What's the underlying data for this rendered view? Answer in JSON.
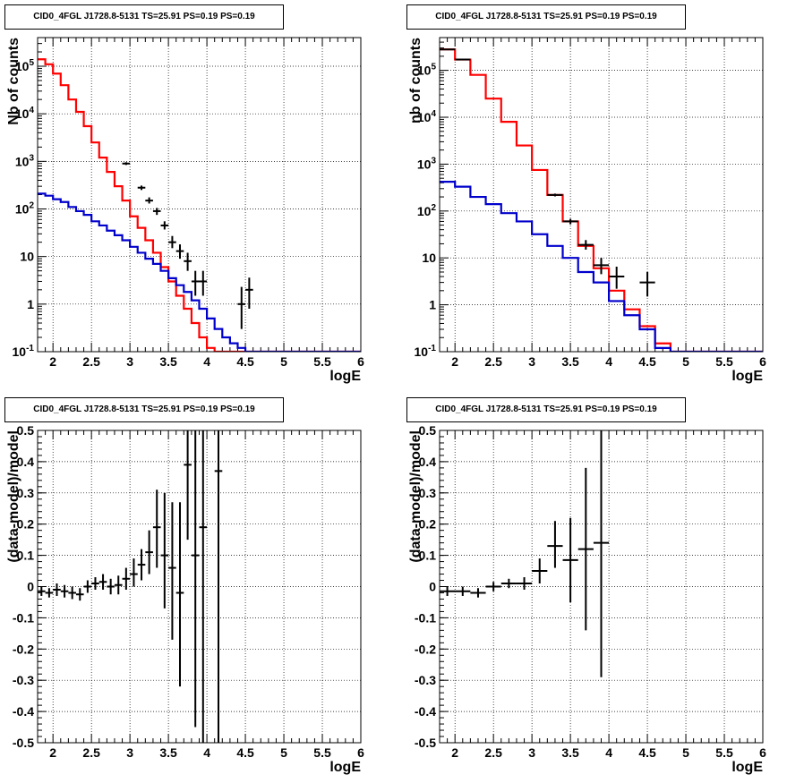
{
  "chart_data": [
    {
      "type": "line",
      "title": "CID0_4FGL J1728.8-5131 TS=25.91 PS=0.19 PS=0.19",
      "xlabel": "logE",
      "ylabel": "Nb of counts",
      "xlim": [
        1.8,
        6.0
      ],
      "ylim": [
        0.1,
        400000
      ],
      "log_y": true,
      "grid": true,
      "x_ticks": [
        "2",
        "2.5",
        "3",
        "3.5",
        "4",
        "4.5",
        "5",
        "5.5",
        "6"
      ],
      "y_ticks": [
        "10^-1",
        "1",
        "10",
        "10^2",
        "10^3",
        "10^4",
        "10^5"
      ],
      "bin_edges": [
        1.8,
        1.9,
        2.0,
        2.1,
        2.2,
        2.3,
        2.4,
        2.5,
        2.6,
        2.7,
        2.8,
        2.9,
        3.0,
        3.1,
        3.2,
        3.3,
        3.4,
        3.5,
        3.6,
        3.7,
        3.8,
        3.9,
        4.0,
        4.1,
        4.2,
        4.3,
        4.4,
        4.5,
        4.6,
        4.7,
        4.8,
        4.9,
        5.0,
        5.1,
        5.2,
        5.3,
        5.4,
        5.5,
        5.6,
        5.7,
        5.8,
        5.9,
        6.0
      ],
      "series": [
        {
          "color": "#ff0000",
          "values": [
            140000,
            110000,
            70000,
            40000,
            20000,
            11000,
            5500,
            2500,
            1200,
            600,
            300,
            150,
            70,
            40,
            22,
            12,
            6,
            3,
            1.5,
            0.8,
            0.4,
            0.2,
            0.12,
            0.1,
            0.1,
            0.1,
            0.1,
            0.1,
            0.1,
            0.1,
            0.1,
            0.1,
            0.1,
            0.1,
            0.1,
            0.1,
            0.1,
            0.1,
            0.1,
            0.1,
            0.1,
            0.1
          ]
        },
        {
          "color": "#0000cc",
          "values": [
            210,
            190,
            160,
            140,
            110,
            90,
            75,
            55,
            45,
            35,
            28,
            22,
            16,
            12,
            9,
            7,
            5,
            3.5,
            2.5,
            1.8,
            1.2,
            0.8,
            0.5,
            0.3,
            0.2,
            0.15,
            0.12,
            0.1,
            0.1,
            0.1,
            0.1,
            0.1,
            0.1,
            0.1,
            0.1,
            0.1,
            0.1,
            0.1,
            0.1,
            0.1,
            0.1,
            0.1
          ]
        }
      ],
      "points": [
        {
          "x": 2.95,
          "y": 900,
          "ylo": 840,
          "yhi": 960,
          "xw": 0.05
        },
        {
          "x": 3.15,
          "y": 280,
          "ylo": 250,
          "yhi": 310,
          "xw": 0.05
        },
        {
          "x": 3.25,
          "y": 150,
          "ylo": 130,
          "yhi": 175,
          "xw": 0.05
        },
        {
          "x": 3.35,
          "y": 90,
          "ylo": 75,
          "yhi": 105,
          "xw": 0.05
        },
        {
          "x": 3.45,
          "y": 45,
          "ylo": 37,
          "yhi": 55,
          "xw": 0.05
        },
        {
          "x": 3.55,
          "y": 20,
          "ylo": 15,
          "yhi": 27,
          "xw": 0.05
        },
        {
          "x": 3.65,
          "y": 13,
          "ylo": 9,
          "yhi": 18,
          "xw": 0.05
        },
        {
          "x": 3.75,
          "y": 8,
          "ylo": 5,
          "yhi": 12,
          "xw": 0.05
        },
        {
          "x": 3.85,
          "y": 3,
          "ylo": 1.5,
          "yhi": 5,
          "xw": 0.05
        },
        {
          "x": 3.95,
          "y": 3,
          "ylo": 1.5,
          "yhi": 5,
          "xw": 0.05
        },
        {
          "x": 4.45,
          "y": 1,
          "ylo": 0.3,
          "yhi": 2.3,
          "xw": 0.05
        },
        {
          "x": 4.55,
          "y": 2,
          "ylo": 0.8,
          "yhi": 3.6,
          "xw": 0.05
        }
      ]
    },
    {
      "type": "line",
      "title": "CID0_4FGL J1728.8-5131 TS=25.91 PS=0.19 PS=0.19",
      "xlabel": "logE",
      "ylabel": "nb of counts",
      "xlim": [
        1.8,
        6.0
      ],
      "ylim": [
        0.1,
        500000
      ],
      "log_y": true,
      "grid": true,
      "x_ticks": [
        "2",
        "2.5",
        "3",
        "3.5",
        "4",
        "4.5",
        "5",
        "5.5",
        "6"
      ],
      "y_ticks": [
        "10^-1",
        "1",
        "10",
        "10^2",
        "10^3",
        "10^4",
        "10^5"
      ],
      "bin_edges": [
        1.8,
        2.0,
        2.2,
        2.4,
        2.6,
        2.8,
        3.0,
        3.2,
        3.4,
        3.6,
        3.8,
        4.0,
        4.2,
        4.4,
        4.6,
        4.8,
        5.0,
        5.2,
        5.4,
        5.6,
        5.8,
        6.0
      ],
      "series": [
        {
          "color": "#ff0000",
          "values": [
            280000,
            170000,
            80000,
            25000,
            8000,
            2500,
            750,
            220,
            60,
            18,
            6,
            2,
            0.8,
            0.35,
            0.15,
            0.1,
            0.1,
            0.1,
            0.1,
            0.1,
            0.1
          ]
        },
        {
          "color": "#0000cc",
          "values": [
            420,
            330,
            200,
            140,
            90,
            60,
            32,
            18,
            10,
            5,
            3,
            1.2,
            0.6,
            0.3,
            0.12,
            0.1,
            0.1,
            0.1,
            0.1,
            0.1,
            0.1
          ]
        }
      ],
      "points": [
        {
          "x": 1.9,
          "y": 280000,
          "ylo": 275000,
          "yhi": 285000,
          "xw": 0.1
        },
        {
          "x": 2.1,
          "y": 170000,
          "ylo": 166000,
          "yhi": 174000,
          "xw": 0.1
        },
        {
          "x": 3.3,
          "y": 220,
          "ylo": 205,
          "yhi": 235,
          "xw": 0.1
        },
        {
          "x": 3.5,
          "y": 60,
          "ylo": 52,
          "yhi": 68,
          "xw": 0.1
        },
        {
          "x": 3.7,
          "y": 19,
          "ylo": 15,
          "yhi": 24,
          "xw": 0.1
        },
        {
          "x": 3.9,
          "y": 7,
          "ylo": 4.5,
          "yhi": 10,
          "xw": 0.1
        },
        {
          "x": 4.1,
          "y": 4,
          "ylo": 2.2,
          "yhi": 6.5,
          "xw": 0.1
        },
        {
          "x": 4.5,
          "y": 3,
          "ylo": 1.5,
          "yhi": 5,
          "xw": 0.1
        }
      ]
    },
    {
      "type": "scatter",
      "title": "CID0_4FGL J1728.8-5131 TS=25.91 PS=0.19 PS=0.19",
      "xlabel": "logE",
      "ylabel": "(data-model)/model",
      "xlim": [
        1.8,
        6.0
      ],
      "ylim": [
        -0.5,
        0.5
      ],
      "grid": true,
      "x_ticks": [
        "2",
        "2.5",
        "3",
        "3.5",
        "4",
        "4.5",
        "5",
        "5.5",
        "6"
      ],
      "y_ticks": [
        "-0.5",
        "-0.4",
        "-0.3",
        "-0.2",
        "-0.1",
        "0",
        "0.1",
        "0.2",
        "0.3",
        "0.4",
        "0.5"
      ],
      "points": [
        {
          "x": 1.85,
          "y": -0.015,
          "ylo": -0.03,
          "yhi": 0.0,
          "xw": 0.05
        },
        {
          "x": 1.95,
          "y": -0.02,
          "ylo": -0.035,
          "yhi": -0.005,
          "xw": 0.05
        },
        {
          "x": 2.05,
          "y": -0.01,
          "ylo": -0.03,
          "yhi": 0.01,
          "xw": 0.05
        },
        {
          "x": 2.15,
          "y": -0.015,
          "ylo": -0.035,
          "yhi": 0.005,
          "xw": 0.05
        },
        {
          "x": 2.25,
          "y": -0.02,
          "ylo": -0.04,
          "yhi": 0.0,
          "xw": 0.05
        },
        {
          "x": 2.35,
          "y": -0.025,
          "ylo": -0.045,
          "yhi": -0.005,
          "xw": 0.05
        },
        {
          "x": 2.45,
          "y": 0.0,
          "ylo": -0.02,
          "yhi": 0.02,
          "xw": 0.05
        },
        {
          "x": 2.55,
          "y": 0.01,
          "ylo": -0.01,
          "yhi": 0.03,
          "xw": 0.05
        },
        {
          "x": 2.65,
          "y": 0.015,
          "ylo": -0.01,
          "yhi": 0.04,
          "xw": 0.05
        },
        {
          "x": 2.75,
          "y": 0.0,
          "ylo": -0.025,
          "yhi": 0.025,
          "xw": 0.05
        },
        {
          "x": 2.85,
          "y": 0.005,
          "ylo": -0.025,
          "yhi": 0.035,
          "xw": 0.05
        },
        {
          "x": 2.95,
          "y": 0.025,
          "ylo": -0.01,
          "yhi": 0.06,
          "xw": 0.05
        },
        {
          "x": 3.05,
          "y": 0.04,
          "ylo": 0.0,
          "yhi": 0.09,
          "xw": 0.05
        },
        {
          "x": 3.15,
          "y": 0.07,
          "ylo": 0.02,
          "yhi": 0.12,
          "xw": 0.05
        },
        {
          "x": 3.25,
          "y": 0.11,
          "ylo": 0.04,
          "yhi": 0.18,
          "xw": 0.05
        },
        {
          "x": 3.35,
          "y": 0.19,
          "ylo": 0.06,
          "yhi": 0.31,
          "xw": 0.05
        },
        {
          "x": 3.45,
          "y": 0.1,
          "ylo": -0.07,
          "yhi": 0.3,
          "xw": 0.05
        },
        {
          "x": 3.55,
          "y": 0.06,
          "ylo": -0.17,
          "yhi": 0.27,
          "xw": 0.05
        },
        {
          "x": 3.65,
          "y": -0.02,
          "ylo": -0.32,
          "yhi": 0.27,
          "xw": 0.05
        },
        {
          "x": 3.75,
          "y": 0.39,
          "ylo": 0.15,
          "yhi": 0.5,
          "xw": 0.05
        },
        {
          "x": 3.85,
          "y": 0.1,
          "ylo": -0.45,
          "yhi": 0.5,
          "xw": 0.05
        },
        {
          "x": 3.95,
          "y": 0.19,
          "ylo": -0.5,
          "yhi": 0.5,
          "xw": 0.05
        },
        {
          "x": 4.15,
          "y": 0.37,
          "ylo": -0.5,
          "yhi": 0.5,
          "xw": 0.05
        }
      ]
    },
    {
      "type": "scatter",
      "title": "CID0_4FGL J1728.8-5131 TS=25.91 PS=0.19 PS=0.19",
      "xlabel": "logE",
      "ylabel": "(data-model)/model",
      "xlim": [
        1.8,
        6.0
      ],
      "ylim": [
        -0.5,
        0.5
      ],
      "grid": true,
      "x_ticks": [
        "2",
        "2.5",
        "3",
        "3.5",
        "4",
        "4.5",
        "5",
        "5.5",
        "6"
      ],
      "y_ticks": [
        "-0.5",
        "-0.4",
        "-0.3",
        "-0.2",
        "-0.1",
        "0",
        "0.1",
        "0.2",
        "0.3",
        "0.4",
        "0.5"
      ],
      "points": [
        {
          "x": 1.9,
          "y": -0.015,
          "ylo": -0.03,
          "yhi": 0.0,
          "xw": 0.1
        },
        {
          "x": 2.1,
          "y": -0.015,
          "ylo": -0.03,
          "yhi": 0.0,
          "xw": 0.1
        },
        {
          "x": 2.3,
          "y": -0.02,
          "ylo": -0.035,
          "yhi": -0.005,
          "xw": 0.1
        },
        {
          "x": 2.5,
          "y": 0.0,
          "ylo": -0.015,
          "yhi": 0.015,
          "xw": 0.1
        },
        {
          "x": 2.7,
          "y": 0.01,
          "ylo": -0.005,
          "yhi": 0.025,
          "xw": 0.1
        },
        {
          "x": 2.9,
          "y": 0.01,
          "ylo": -0.01,
          "yhi": 0.03,
          "xw": 0.1
        },
        {
          "x": 3.1,
          "y": 0.05,
          "ylo": 0.01,
          "yhi": 0.09,
          "xw": 0.1
        },
        {
          "x": 3.3,
          "y": 0.13,
          "ylo": 0.06,
          "yhi": 0.21,
          "xw": 0.1
        },
        {
          "x": 3.5,
          "y": 0.085,
          "ylo": -0.05,
          "yhi": 0.22,
          "xw": 0.1
        },
        {
          "x": 3.7,
          "y": 0.12,
          "ylo": -0.14,
          "yhi": 0.38,
          "xw": 0.1
        },
        {
          "x": 3.9,
          "y": 0.14,
          "ylo": -0.29,
          "yhi": 0.5,
          "xw": 0.1
        }
      ]
    }
  ]
}
